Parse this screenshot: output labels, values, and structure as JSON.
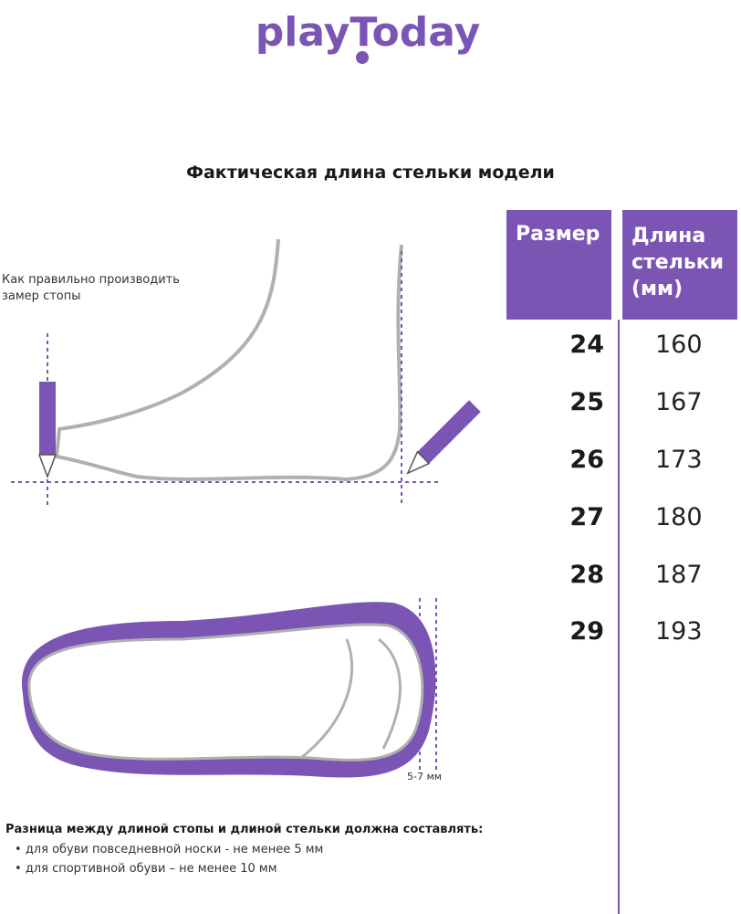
{
  "brand": {
    "logo_text": "playToday",
    "color": "#7b55b4"
  },
  "title": "Фактическая длина стельки модели",
  "table": {
    "headers": [
      "Размер",
      "Длина стельки (мм)"
    ],
    "header_lines": [
      "Длина",
      "стельки",
      "(мм)"
    ],
    "rows": [
      {
        "size": "24",
        "length": "160"
      },
      {
        "size": "25",
        "length": "167"
      },
      {
        "size": "26",
        "length": "173"
      },
      {
        "size": "27",
        "length": "180"
      },
      {
        "size": "28",
        "length": "187"
      },
      {
        "size": "29",
        "length": "193"
      }
    ]
  },
  "howto_line1": "Как правильно производить",
  "howto_line2": "замер стопы",
  "gap_label": "5-7 мм",
  "note": {
    "heading": "Разница между длиной стопы и длиной стельки должна составлять:",
    "items": [
      "для обуви повседневной носки -  не менее 5 мм",
      "для спортивной обуви – не менее 10 мм"
    ]
  }
}
